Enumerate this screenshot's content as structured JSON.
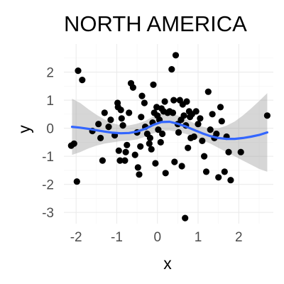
{
  "chart_data": {
    "type": "scatter",
    "title": "NORTH AMERICA",
    "xlabel": "x",
    "ylabel": "y",
    "xlim": [
      -2.3,
      2.85
    ],
    "ylim": [
      -3.4,
      3.0
    ],
    "x_ticks": [
      -2,
      -1,
      0,
      1,
      2
    ],
    "y_ticks": [
      -3,
      -2,
      -1,
      0,
      1,
      2
    ],
    "x_tick_labels": [
      "-2",
      "-1",
      "0",
      "1",
      "2"
    ],
    "y_tick_labels": [
      "-3",
      "-2",
      "-1",
      "0",
      "1",
      "2"
    ],
    "grid": true,
    "points": [
      {
        "x": -1.95,
        "y": 2.05
      },
      {
        "x": -1.85,
        "y": 1.72
      },
      {
        "x": -2.05,
        "y": -0.55
      },
      {
        "x": -2.12,
        "y": -0.62
      },
      {
        "x": -1.98,
        "y": -1.9
      },
      {
        "x": -1.6,
        "y": -0.1
      },
      {
        "x": -1.45,
        "y": 0.15
      },
      {
        "x": -1.4,
        "y": -0.35
      },
      {
        "x": -1.35,
        "y": -1.15
      },
      {
        "x": -1.3,
        "y": 0.55
      },
      {
        "x": -1.2,
        "y": 0.05
      },
      {
        "x": -1.15,
        "y": 0.3
      },
      {
        "x": -1.05,
        "y": -0.25
      },
      {
        "x": -0.98,
        "y": 0.9
      },
      {
        "x": -0.97,
        "y": 0.75
      },
      {
        "x": -0.95,
        "y": -0.8
      },
      {
        "x": -0.92,
        "y": -1.15
      },
      {
        "x": -0.9,
        "y": 0.65
      },
      {
        "x": -0.88,
        "y": 0.35
      },
      {
        "x": -0.85,
        "y": 0.1
      },
      {
        "x": -0.8,
        "y": -1.15
      },
      {
        "x": -0.78,
        "y": -0.85
      },
      {
        "x": -0.75,
        "y": -0.6
      },
      {
        "x": -0.7,
        "y": 0.55
      },
      {
        "x": -0.65,
        "y": 1.6
      },
      {
        "x": -0.6,
        "y": 1.45
      },
      {
        "x": -0.55,
        "y": -0.95
      },
      {
        "x": -0.5,
        "y": -0.15
      },
      {
        "x": -0.48,
        "y": -1.4
      },
      {
        "x": -0.45,
        "y": -1.65
      },
      {
        "x": -0.42,
        "y": -0.65
      },
      {
        "x": -0.4,
        "y": 0.4
      },
      {
        "x": -0.38,
        "y": 1.15
      },
      {
        "x": -0.32,
        "y": 0.9
      },
      {
        "x": -0.3,
        "y": 0.05
      },
      {
        "x": -0.25,
        "y": -0.2
      },
      {
        "x": -0.2,
        "y": -0.55
      },
      {
        "x": -0.18,
        "y": -0.35
      },
      {
        "x": -0.15,
        "y": -0.75
      },
      {
        "x": -0.12,
        "y": 0.2
      },
      {
        "x": -0.1,
        "y": 1.55
      },
      {
        "x": -0.08,
        "y": 0.55
      },
      {
        "x": -0.05,
        "y": -1.25
      },
      {
        "x": -0.02,
        "y": 0.75
      },
      {
        "x": 0.0,
        "y": 0.45
      },
      {
        "x": 0.02,
        "y": -0.05
      },
      {
        "x": 0.05,
        "y": 0.3
      },
      {
        "x": 0.08,
        "y": -0.5
      },
      {
        "x": 0.1,
        "y": 0.7
      },
      {
        "x": 0.12,
        "y": -0.2
      },
      {
        "x": 0.15,
        "y": 0.6
      },
      {
        "x": 0.18,
        "y": 0.95
      },
      {
        "x": 0.2,
        "y": -1.6
      },
      {
        "x": 0.25,
        "y": 0.55
      },
      {
        "x": 0.3,
        "y": 0.6
      },
      {
        "x": 0.35,
        "y": 2.1
      },
      {
        "x": 0.38,
        "y": 0.55
      },
      {
        "x": 0.4,
        "y": 1.0
      },
      {
        "x": 0.42,
        "y": -1.2
      },
      {
        "x": 0.45,
        "y": 2.6
      },
      {
        "x": 0.5,
        "y": 0.15
      },
      {
        "x": 0.52,
        "y": -0.15
      },
      {
        "x": 0.55,
        "y": 1.0
      },
      {
        "x": 0.58,
        "y": 0.3
      },
      {
        "x": 0.6,
        "y": -1.35
      },
      {
        "x": 0.62,
        "y": 0.85
      },
      {
        "x": 0.65,
        "y": 0.45
      },
      {
        "x": 0.68,
        "y": -3.2
      },
      {
        "x": 0.7,
        "y": 0.1
      },
      {
        "x": 0.72,
        "y": 0.95
      },
      {
        "x": 0.75,
        "y": -0.7
      },
      {
        "x": 0.78,
        "y": 0.6
      },
      {
        "x": 0.8,
        "y": 0.4
      },
      {
        "x": 0.82,
        "y": -0.35
      },
      {
        "x": 0.85,
        "y": 0.5
      },
      {
        "x": 0.9,
        "y": -0.3
      },
      {
        "x": 0.95,
        "y": 0.6
      },
      {
        "x": 1.0,
        "y": 0.15
      },
      {
        "x": 1.05,
        "y": 0.35
      },
      {
        "x": 1.1,
        "y": -0.45
      },
      {
        "x": 1.15,
        "y": -1.0
      },
      {
        "x": 1.2,
        "y": -1.55
      },
      {
        "x": 1.25,
        "y": 1.3
      },
      {
        "x": 1.3,
        "y": -0.05
      },
      {
        "x": 1.35,
        "y": 0.5
      },
      {
        "x": 1.4,
        "y": -0.35
      },
      {
        "x": 1.45,
        "y": -0.2
      },
      {
        "x": 1.5,
        "y": -1.75
      },
      {
        "x": 1.55,
        "y": 0.75
      },
      {
        "x": 1.58,
        "y": 0.25
      },
      {
        "x": 1.65,
        "y": -1.55
      },
      {
        "x": 1.7,
        "y": -0.3
      },
      {
        "x": 1.75,
        "y": -0.85
      },
      {
        "x": 1.8,
        "y": -1.85
      },
      {
        "x": 2.05,
        "y": -0.85
      },
      {
        "x": 2.7,
        "y": 0.45
      }
    ],
    "smooth": {
      "x": [
        -2.1,
        -1.9,
        -1.7,
        -1.5,
        -1.3,
        -1.1,
        -0.9,
        -0.7,
        -0.5,
        -0.3,
        -0.1,
        0.1,
        0.3,
        0.5,
        0.7,
        0.9,
        1.1,
        1.3,
        1.5,
        1.7,
        1.9,
        2.1,
        2.3,
        2.5,
        2.7
      ],
      "y": [
        0.05,
        0.02,
        -0.02,
        -0.07,
        -0.12,
        -0.16,
        -0.18,
        -0.17,
        -0.12,
        -0.02,
        0.12,
        0.22,
        0.23,
        0.16,
        0.06,
        -0.06,
        -0.18,
        -0.28,
        -0.35,
        -0.38,
        -0.38,
        -0.35,
        -0.3,
        -0.24,
        -0.15
      ],
      "lower": [
        -0.95,
        -0.85,
        -0.72,
        -0.62,
        -0.55,
        -0.5,
        -0.46,
        -0.44,
        -0.4,
        -0.3,
        -0.18,
        -0.1,
        -0.08,
        -0.13,
        -0.2,
        -0.3,
        -0.42,
        -0.55,
        -0.7,
        -0.85,
        -1.0,
        -1.15,
        -1.3,
        -1.45,
        -1.55
      ],
      "upper": [
        1.05,
        0.9,
        0.68,
        0.48,
        0.31,
        0.18,
        0.1,
        0.1,
        0.16,
        0.26,
        0.42,
        0.54,
        0.54,
        0.45,
        0.32,
        0.18,
        0.06,
        -0.01,
        0.0,
        0.09,
        0.24,
        0.45,
        0.7,
        0.97,
        1.25
      ]
    },
    "colors": {
      "points": "#000000",
      "smooth_line": "#3366FF",
      "band": "#999999",
      "grid": "#ebebeb"
    }
  }
}
